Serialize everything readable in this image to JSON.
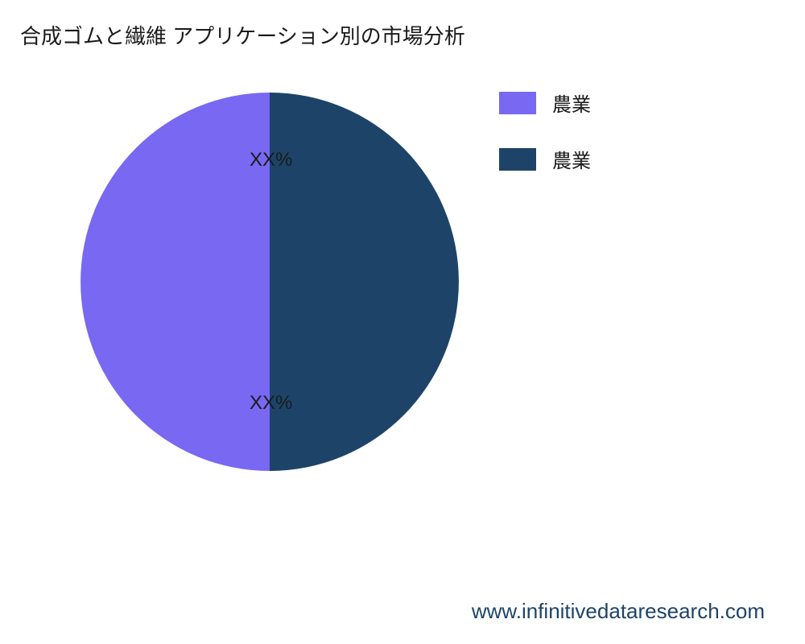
{
  "chart": {
    "title": "合成ゴムと繊維 アプリケーション別の市場分析",
    "type": "pie",
    "slices": [
      {
        "label": "農業",
        "value": 50,
        "color": "#1d4468",
        "display_label": "XX%"
      },
      {
        "label": "農業",
        "value": 50,
        "color": "#7868f2",
        "display_label": "XX%"
      }
    ],
    "background_color": "#ffffff",
    "title_fontsize": 26,
    "title_color": "#1a1a1a",
    "label_fontsize": 24,
    "label_color": "#1a1a1a",
    "legend_fontsize": 24,
    "pie_radius": 235
  },
  "footer": {
    "text": "www.infinitivedataresearch.com",
    "color": "#1d4468",
    "fontsize": 26
  }
}
